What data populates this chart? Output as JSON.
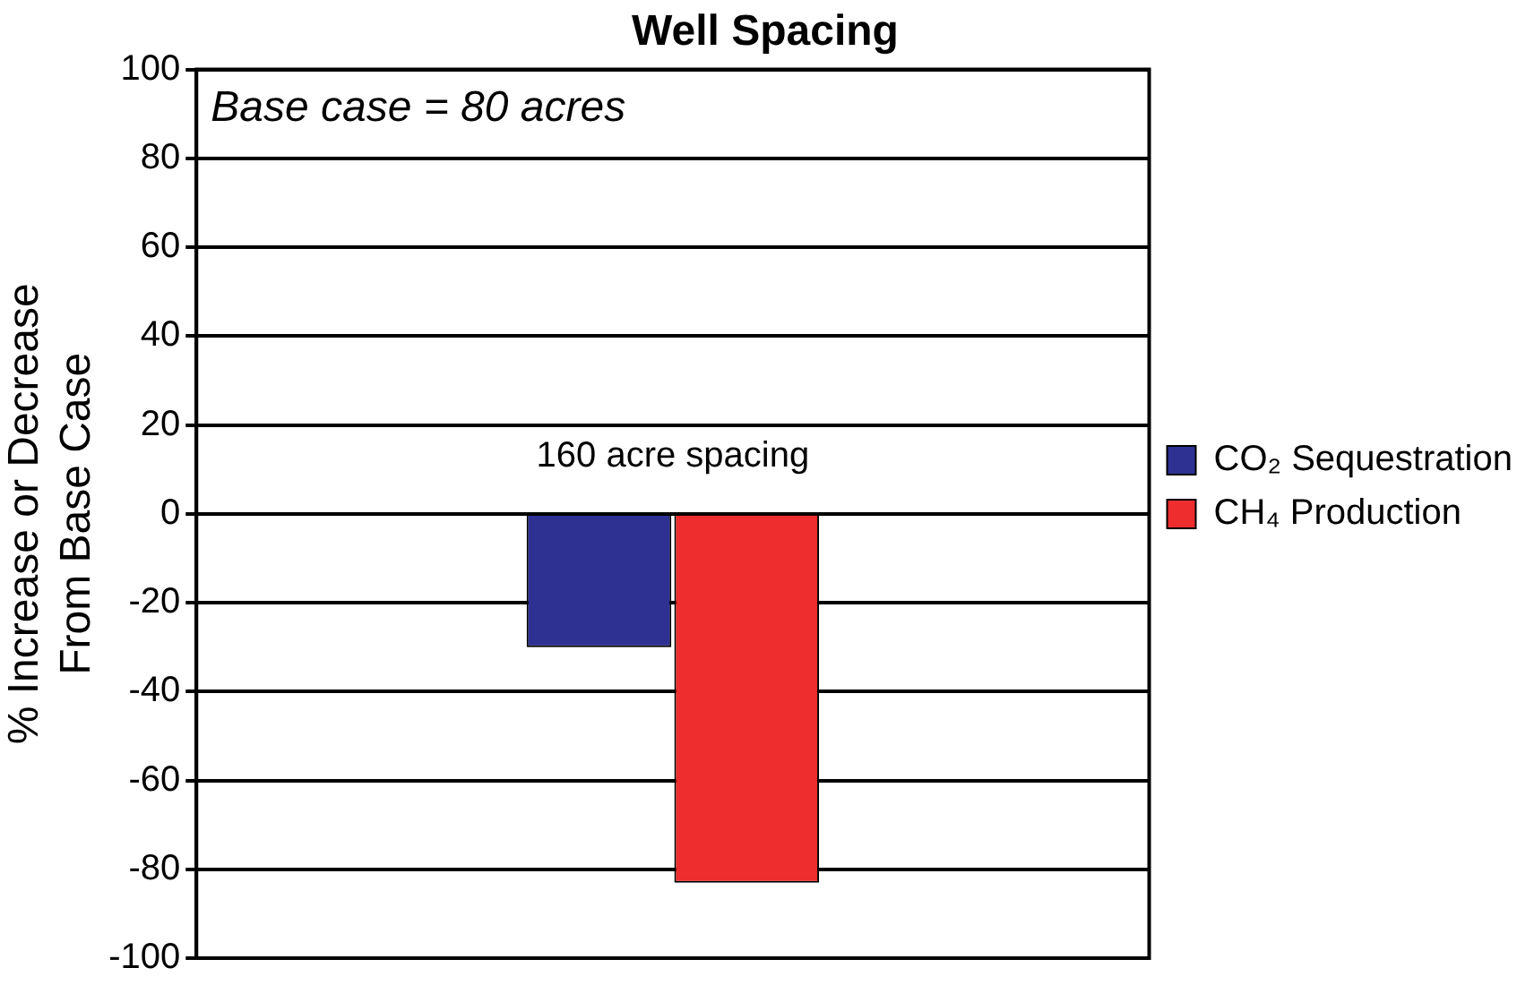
{
  "chart_data": {
    "type": "bar",
    "title": "Well Spacing",
    "ylabel": "% Increase or Decrease\nFrom Base Case",
    "annotations": [
      "Base case = 80 acres"
    ],
    "categories": [
      "160 acre spacing"
    ],
    "series": [
      {
        "name": "CO₂ Sequestration",
        "color": "#2e3192",
        "values": [
          -30
        ]
      },
      {
        "name": "CH₄ Production",
        "color": "#ed2d2e",
        "values": [
          -83
        ]
      }
    ],
    "ylim": [
      -100,
      100
    ],
    "yticks": [
      -100,
      -80,
      -60,
      -40,
      -20,
      0,
      20,
      40,
      60,
      80,
      100
    ],
    "grid": "y",
    "legend": "right"
  }
}
